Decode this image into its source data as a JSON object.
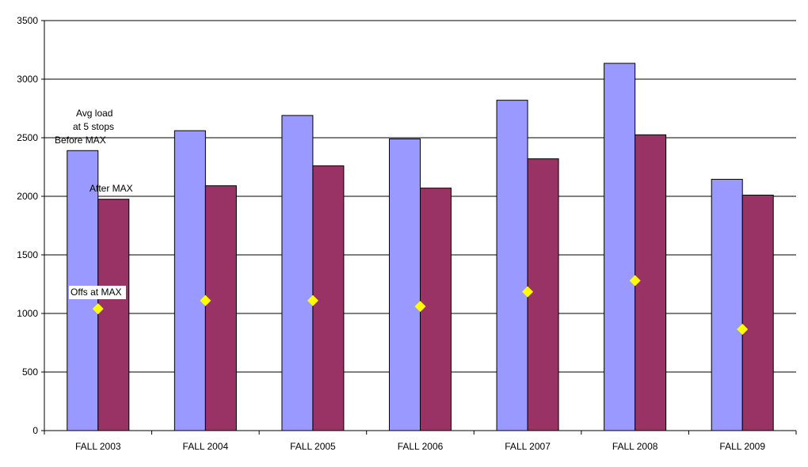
{
  "chart_data": {
    "type": "bar",
    "categories": [
      "FALL 2003",
      "FALL 2004",
      "FALL 2005",
      "FALL 2006",
      "FALL 2007",
      "FALL 2008",
      "FALL 2009"
    ],
    "series": [
      {
        "name": "Before MAX",
        "kind": "bar",
        "color": "#9999ff",
        "values": [
          2390,
          2560,
          2690,
          2490,
          2820,
          3135,
          2145
        ]
      },
      {
        "name": "After MAX",
        "kind": "bar",
        "color": "#993366",
        "values": [
          1975,
          2090,
          2260,
          2070,
          2320,
          2525,
          2010
        ]
      },
      {
        "name": "Offs at MAX",
        "kind": "marker",
        "marker": "diamond",
        "color": "#ffff00",
        "values": [
          1040,
          1110,
          1110,
          1060,
          1185,
          1280,
          865
        ]
      }
    ],
    "ylim": [
      0,
      3500
    ],
    "yticks": [
      0,
      500,
      1000,
      1500,
      2000,
      2500,
      3000,
      3500
    ],
    "grid": true,
    "legend": "none",
    "annotations": {
      "avg_load_line1": "Avg load",
      "avg_load_line2": "at 5 stops",
      "before": "Before MAX",
      "after": "After MAX",
      "offs": "Offs at MAX"
    }
  }
}
